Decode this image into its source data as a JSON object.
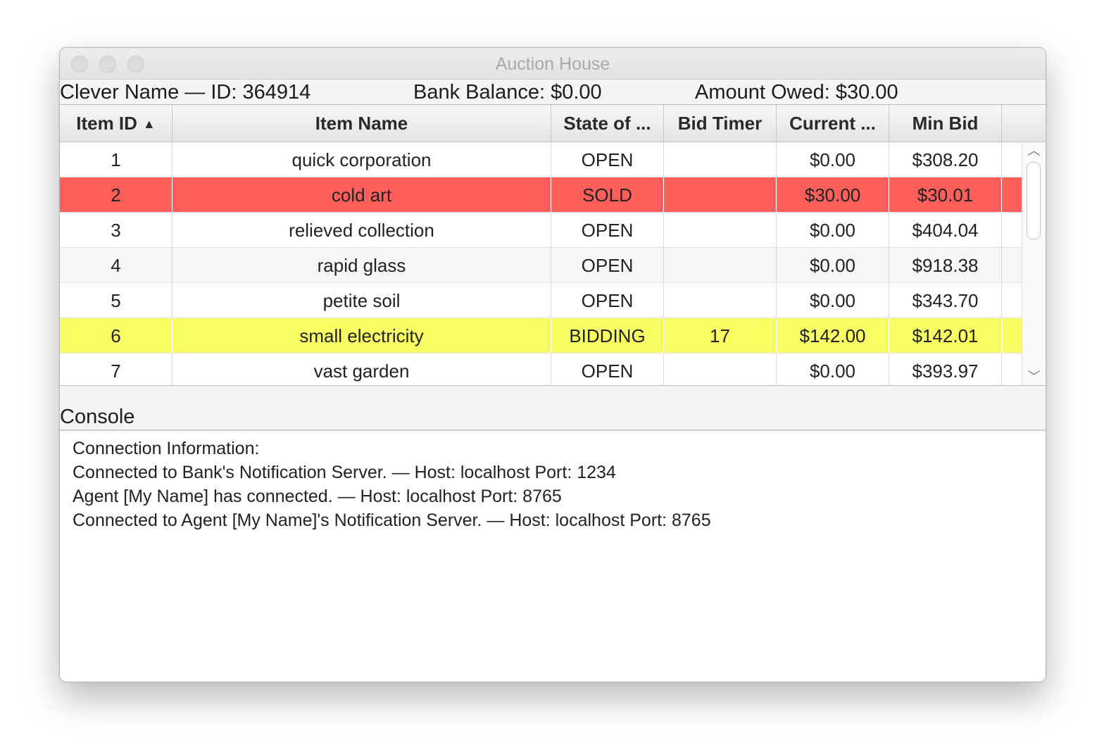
{
  "window": {
    "title": "Auction House"
  },
  "info": {
    "agent": "Clever Name — ID: 364914",
    "balance": "Bank Balance: $0.00",
    "owed": "Amount Owed: $30.00"
  },
  "table": {
    "columns": [
      "Item ID",
      "Item Name",
      "State of ...",
      "Bid Timer",
      "Current ...",
      "Min Bid"
    ],
    "sort_indicator": "▲",
    "rows": [
      {
        "id": "1",
        "name": "quick corporation",
        "state": "OPEN",
        "timer": "",
        "current": "$0.00",
        "min": "$308.20"
      },
      {
        "id": "2",
        "name": "cold art",
        "state": "SOLD",
        "timer": "",
        "current": "$30.00",
        "min": "$30.01"
      },
      {
        "id": "3",
        "name": "relieved collection",
        "state": "OPEN",
        "timer": "",
        "current": "$0.00",
        "min": "$404.04"
      },
      {
        "id": "4",
        "name": "rapid glass",
        "state": "OPEN",
        "timer": "",
        "current": "$0.00",
        "min": "$918.38"
      },
      {
        "id": "5",
        "name": "petite soil",
        "state": "OPEN",
        "timer": "",
        "current": "$0.00",
        "min": "$343.70"
      },
      {
        "id": "6",
        "name": "small electricity",
        "state": "BIDDING",
        "timer": "17",
        "current": "$142.00",
        "min": "$142.01"
      },
      {
        "id": "7",
        "name": "vast garden",
        "state": "OPEN",
        "timer": "",
        "current": "$0.00",
        "min": "$393.97"
      }
    ]
  },
  "console": {
    "label": "Console",
    "lines": [
      "Connection Information:",
      "Connected to Bank's Notification Server. — Host: localhost Port: 1234",
      "Agent [My Name] has connected. — Host: localhost Port: 8765",
      "Connected to Agent [My Name]'s Notification Server. — Host: localhost Port: 8765"
    ]
  },
  "colors": {
    "sold_row": "#ff5f5a",
    "bidding_row": "#f8ff63",
    "row_alt": "#f6f6f6"
  }
}
